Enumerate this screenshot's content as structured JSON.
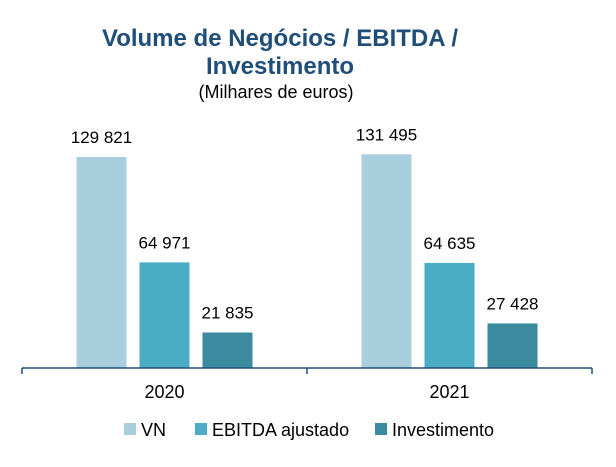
{
  "chart_data": {
    "type": "bar",
    "title_lines": [
      "Volume de Negócios / EBITDA /",
      "Investimento"
    ],
    "subtitle": "(Milhares de euros)",
    "categories": [
      "2020",
      "2021"
    ],
    "series": [
      {
        "name": "VN",
        "values": [
          129821,
          131495
        ],
        "labels": [
          "129 821",
          "131 495"
        ],
        "color": "#a9cfdf"
      },
      {
        "name": "EBITDA ajustado",
        "values": [
          64971,
          64635
        ],
        "labels": [
          "64 971",
          "64 635"
        ],
        "color": "#4bacc6"
      },
      {
        "name": "Investimento",
        "values": [
          21835,
          27428
        ],
        "labels": [
          "21 835",
          "27 428"
        ],
        "color": "#3a8aa0"
      }
    ],
    "ylim": [
      0,
      140000
    ],
    "grid": false,
    "legend_position": "bottom",
    "axis_color": "#1f4e79"
  }
}
